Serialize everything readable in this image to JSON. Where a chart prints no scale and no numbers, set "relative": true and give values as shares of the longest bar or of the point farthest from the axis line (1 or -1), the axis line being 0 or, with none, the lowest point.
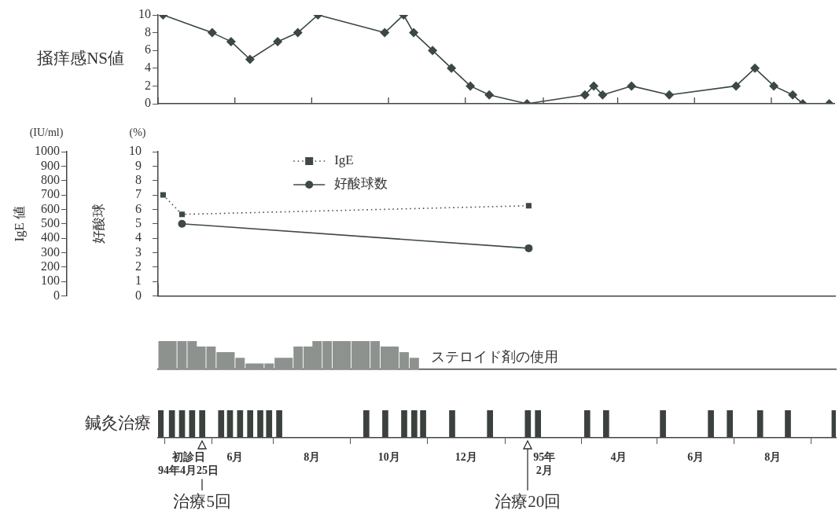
{
  "chart_data": [
    {
      "type": "line",
      "ylabel": "掻痒感NS値",
      "color": "#3b4843",
      "marker": "diamond",
      "x": [
        "1994-04-05",
        "1994-05-14",
        "1994-05-29",
        "1994-06-13",
        "1994-07-05",
        "1994-07-21",
        "1994-08-06",
        "1994-09-28",
        "1994-10-13",
        "1994-10-21",
        "1994-11-05",
        "1994-11-20",
        "1994-12-05",
        "1994-12-20",
        "1995-01-19",
        "1995-03-06",
        "1995-03-13",
        "1995-03-20",
        "1995-04-12",
        "1995-05-12",
        "1995-07-04",
        "1995-07-19",
        "1995-08-03",
        "1995-08-18",
        "1995-08-26",
        "1995-09-16"
      ],
      "values": [
        10,
        8,
        7,
        5,
        7,
        8,
        10,
        8,
        10,
        8,
        6,
        4,
        2,
        1,
        0,
        1,
        2,
        1,
        2,
        1,
        2,
        4,
        2,
        1,
        0,
        0
      ],
      "xlim": [
        "1994-04-01",
        "1995-09-20"
      ],
      "xticks": [
        {
          "value": "1994-04-01",
          "label": null
        },
        {
          "value": "1994-06-01",
          "label": null
        },
        {
          "value": "1994-08-01",
          "label": null
        },
        {
          "value": "1994-10-01",
          "label": null
        },
        {
          "value": "1994-12-01",
          "label": null
        },
        {
          "value": "1995-02-01",
          "label": null
        },
        {
          "value": "1995-04-01",
          "label": null
        },
        {
          "value": "1995-06-01",
          "label": null
        },
        {
          "value": "1995-08-01",
          "label": null
        }
      ],
      "ylim": [
        0,
        10
      ],
      "yticks": [
        0,
        2,
        4,
        6,
        8,
        10
      ],
      "tick_labels": "y"
    },
    {
      "type": "line",
      "ylabel": "IgE 値",
      "y2label": "好酸球",
      "annotations": [
        "(IU/ml)",
        "(%)"
      ],
      "legend": "top left",
      "xlim": [
        "1994-04-01",
        "1995-09-20"
      ],
      "xticks": [
        {
          "value": "1994-04-01",
          "label": null
        }
      ],
      "ylim": [
        0,
        1000
      ],
      "yticks": [
        0,
        100,
        200,
        300,
        400,
        500,
        600,
        700,
        800,
        900,
        1000
      ],
      "y2lim": [
        0,
        10
      ],
      "y2ticks": [
        0,
        1,
        2,
        3,
        4,
        5,
        6,
        7,
        8,
        9,
        10
      ],
      "tick_labels": "y",
      "series": [
        {
          "name": "IgE",
          "color": "#3e4944",
          "x": [
            "1994-04-05",
            "1994-04-20",
            "1995-01-20"
          ],
          "values": [
            700,
            565,
            625
          ],
          "marker": "square",
          "line_style": "dotted"
        },
        {
          "name": "好酸球数",
          "color": "#3e4944",
          "axis": "y2",
          "x": [
            "1994-04-20",
            "1995-01-20"
          ],
          "values": [
            5.0,
            3.3
          ],
          "marker": "circle",
          "line_style": "solid"
        }
      ]
    },
    {
      "type": "bar",
      "relative": true,
      "color": "#8d928f",
      "annotations": [
        "ステロイド剤の使用"
      ],
      "x": [
        "1994-04-05",
        "1994-04-12",
        "1994-04-20",
        "1994-04-28",
        "1994-05-05",
        "1994-05-13",
        "1994-05-21",
        "1994-05-28",
        "1994-06-05",
        "1994-06-13",
        "1994-06-20",
        "1994-06-28",
        "1994-07-06",
        "1994-07-13",
        "1994-07-21",
        "1994-07-29",
        "1994-08-05",
        "1994-08-13",
        "1994-08-21",
        "1994-08-28",
        "1994-09-05",
        "1994-09-12",
        "1994-09-20",
        "1994-09-28",
        "1994-10-05",
        "1994-10-13",
        "1994-10-21"
      ],
      "values": [
        1,
        1,
        1,
        1,
        0.8,
        0.8,
        0.6,
        0.6,
        0.4,
        0.2,
        0.2,
        0.2,
        0.4,
        0.4,
        0.8,
        0.8,
        1,
        1,
        1,
        1,
        1,
        1,
        1,
        0.8,
        0.8,
        0.6,
        0.4
      ],
      "xlim": [
        "1994-04-01",
        "1995-09-20"
      ],
      "tick_labels": false
    },
    {
      "type": "bar",
      "relative": true,
      "ylabel": "鍼灸治療",
      "color": "#3b423e",
      "x": [
        "1994-04-03",
        "1994-04-12",
        "1994-04-20",
        "1994-04-28",
        "1994-05-06",
        "1994-05-21",
        "1994-05-28",
        "1994-06-05",
        "1994-06-13",
        "1994-06-21",
        "1994-06-28",
        "1994-07-06",
        "1994-09-13",
        "1994-09-28",
        "1994-10-13",
        "1994-10-21",
        "1994-10-28",
        "1994-11-20",
        "1994-12-20",
        "1995-01-19",
        "1995-01-27",
        "1995-03-07",
        "1995-03-22",
        "1995-05-06",
        "1995-06-13",
        "1995-06-28",
        "1995-07-22",
        "1995-08-13",
        "1995-09-19"
      ],
      "values": [
        1,
        1,
        1,
        1,
        1,
        1,
        1,
        1,
        1,
        1,
        1,
        1,
        1,
        1,
        1,
        1,
        1,
        1,
        1,
        1,
        1,
        1,
        1,
        1,
        1,
        1,
        1,
        1,
        1
      ],
      "xlim": [
        "1994-04-01",
        "1995-09-20"
      ],
      "xticks": [
        {
          "value": "1994-04-25",
          "label": "初診日\n94年4月25日"
        },
        {
          "value": "1994-06-01",
          "label": "6月"
        },
        {
          "value": "1994-08-01",
          "label": "8月"
        },
        {
          "value": "1994-10-01",
          "label": "10月"
        },
        {
          "value": "1994-12-01",
          "label": "12月"
        },
        {
          "value": "1995-02-01",
          "label": "95年\n2月"
        },
        {
          "value": "1995-04-01",
          "label": "4月"
        },
        {
          "value": "1995-06-01",
          "label": "6月"
        },
        {
          "value": "1995-08-01",
          "label": "8月"
        }
      ],
      "tick_labels": "x",
      "annotations": [
        {
          "text": "治療5回",
          "x": "1994-05-06"
        },
        {
          "text": "治療20回",
          "x": "1995-01-19"
        }
      ]
    }
  ]
}
